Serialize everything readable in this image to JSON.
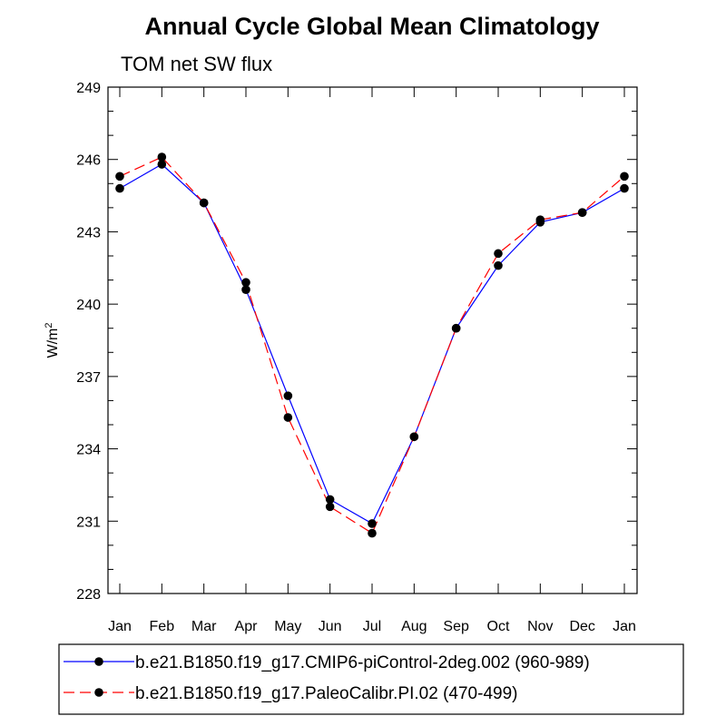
{
  "chart_data": {
    "type": "line",
    "title": "Annual Cycle Global Mean Climatology",
    "subtitle": "TOM net SW flux",
    "xlabel": "",
    "ylabel": "W/m",
    "ylabel_superscript": "2",
    "categories": [
      "Jan",
      "Feb",
      "Mar",
      "Apr",
      "May",
      "Jun",
      "Jul",
      "Aug",
      "Sep",
      "Oct",
      "Nov",
      "Dec",
      "Jan"
    ],
    "ylim": [
      228,
      249
    ],
    "yticks": [
      228,
      231,
      234,
      237,
      240,
      243,
      246,
      249
    ],
    "series": [
      {
        "name": "b.e21.B1850.f19_g17.CMIP6-piControl-2deg.002 (960-989)",
        "color": "#0000ff",
        "dash": "solid",
        "values": [
          244.8,
          245.8,
          244.2,
          240.6,
          236.2,
          231.9,
          230.9,
          234.5,
          239.0,
          241.6,
          243.4,
          243.8,
          244.8
        ]
      },
      {
        "name": "b.e21.B1850.f19_g17.PaleoCalibr.PI.02 (470-499)",
        "color": "#ff0000",
        "dash": "dashed",
        "values": [
          245.3,
          246.1,
          244.2,
          240.9,
          235.3,
          231.6,
          230.5,
          234.5,
          239.0,
          242.1,
          243.5,
          243.8,
          245.3
        ]
      }
    ],
    "legend": "bottom",
    "grid": false
  }
}
